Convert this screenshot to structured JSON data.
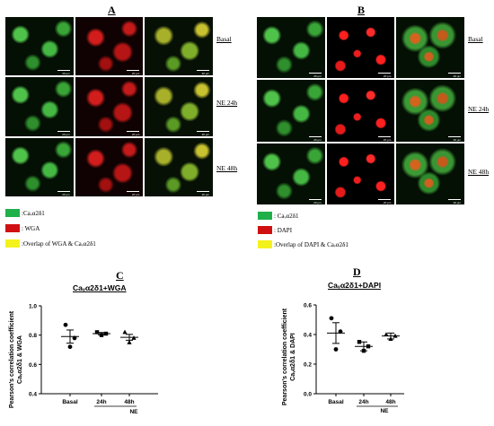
{
  "panels": {
    "A": {
      "letter": "A",
      "rows": [
        "Basal",
        "NE 24h",
        "NE 48h"
      ],
      "columns": [
        "green",
        "red",
        "merge"
      ],
      "scale_label": "20 μm",
      "legend": [
        {
          "color": "#1fb04a",
          "text": ":Caᵥα2δ1"
        },
        {
          "color": "#d01010",
          "text": ": WGA"
        },
        {
          "color": "#f4f21c",
          "text": ":Overlap of WGA & Caᵥα2δ1"
        }
      ]
    },
    "B": {
      "letter": "B",
      "rows": [
        "Basal",
        "NE 24h",
        "NE 48h"
      ],
      "columns": [
        "green",
        "dapi",
        "dmerge"
      ],
      "scale_label": "20 μm",
      "legend": [
        {
          "color": "#1fb04a",
          "text": ": Caᵥα2δ1"
        },
        {
          "color": "#d01010",
          "text": ": DAPI"
        },
        {
          "color": "#f4f21c",
          "text": ":Overlap of DAPI & Caᵥα2δ1"
        }
      ]
    }
  },
  "chart_data": [
    {
      "panel": "C",
      "type": "scatter",
      "title": "Caᵥα2δ1+WGA",
      "ylabel_line1": "Pearson's correlation coefficient",
      "ylabel_line2": "Caᵥα2δ1 & WGA",
      "categories": [
        "Basal",
        "24h",
        "48h"
      ],
      "group_label": "NE",
      "ylim": [
        0.4,
        1.0
      ],
      "yticks": [
        "0.4",
        "0.6",
        "0.8",
        "1.0"
      ],
      "ytick_values": [
        0.4,
        0.6,
        0.8,
        1.0
      ],
      "points": [
        {
          "category": "Basal",
          "marker": "circle",
          "values": [
            0.87,
            0.78,
            0.72
          ]
        },
        {
          "category": "24h",
          "marker": "square",
          "values": [
            0.82,
            0.81,
            0.8
          ]
        },
        {
          "category": "48h",
          "marker": "triangle",
          "values": [
            0.82,
            0.78,
            0.75
          ]
        }
      ],
      "means": [
        0.79,
        0.81,
        0.785
      ],
      "sem": [
        0.045,
        0.008,
        0.02
      ]
    },
    {
      "panel": "D",
      "type": "scatter",
      "title": "Caᵥα2δ1+DAPI",
      "ylabel_line1": "Pearson's correlation coefficient",
      "ylabel_line2": "Caᵥα2δ1 & DAPI",
      "categories": [
        "Basal",
        "24h",
        "48h"
      ],
      "group_label": "NE",
      "ylim": [
        0.0,
        0.6
      ],
      "yticks": [
        "0.0",
        "0.2",
        "0.4",
        "0.6"
      ],
      "ytick_values": [
        0.0,
        0.2,
        0.4,
        0.6
      ],
      "points": [
        {
          "category": "Basal",
          "marker": "circle",
          "values": [
            0.51,
            0.42,
            0.3
          ]
        },
        {
          "category": "24h",
          "marker": "square",
          "values": [
            0.35,
            0.32,
            0.29
          ]
        },
        {
          "category": "48h",
          "marker": "triangle",
          "values": [
            0.4,
            0.39,
            0.37
          ]
        }
      ],
      "means": [
        0.41,
        0.32,
        0.39
      ],
      "sem": [
        0.07,
        0.03,
        0.02
      ]
    }
  ]
}
